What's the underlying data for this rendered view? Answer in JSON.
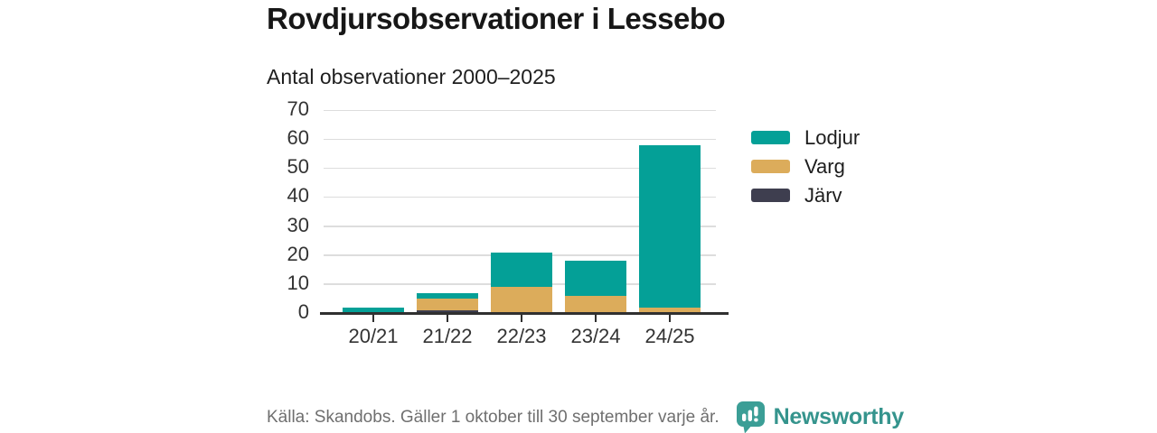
{
  "header": {
    "title": "Rovdjursobservationer i Lessebo"
  },
  "chart": {
    "subtitle": "Antal observationer 2000–2025"
  },
  "chart_data": {
    "type": "bar",
    "stacked": true,
    "title": "Rovdjursobservationer i Lessebo",
    "subtitle": "Antal observationer 2000–2025",
    "categories": [
      "20/21",
      "21/22",
      "22/23",
      "23/24",
      "24/25"
    ],
    "series": [
      {
        "name": "Lodjur",
        "color": "#04a097",
        "values": [
          2,
          2,
          12,
          12,
          56
        ]
      },
      {
        "name": "Varg",
        "color": "#dcac5b",
        "values": [
          0,
          4,
          9,
          6,
          2
        ]
      },
      {
        "name": "Järv",
        "color": "#3e3e4f",
        "values": [
          0,
          1,
          0,
          0,
          0
        ]
      }
    ],
    "totals": [
      2,
      7,
      21,
      18,
      58
    ],
    "xlabel": "",
    "ylabel": "",
    "ylim": [
      0,
      70
    ],
    "yticks": [
      0,
      10,
      20,
      30,
      40,
      50,
      60,
      70
    ],
    "grid": "horizontal",
    "legend_position": "right",
    "colors": {
      "grid_line": "#dddddd",
      "axis_line": "#303030",
      "tick_label": "#333333"
    }
  },
  "footer": {
    "source": "Källa: Skandobs. Gäller 1 oktober till 30 september varje år.",
    "brand": "Newsworthy",
    "logo_icon": "newsworthy-speech-bubble-bar-chart-icon",
    "brand_color": "#35948d"
  }
}
